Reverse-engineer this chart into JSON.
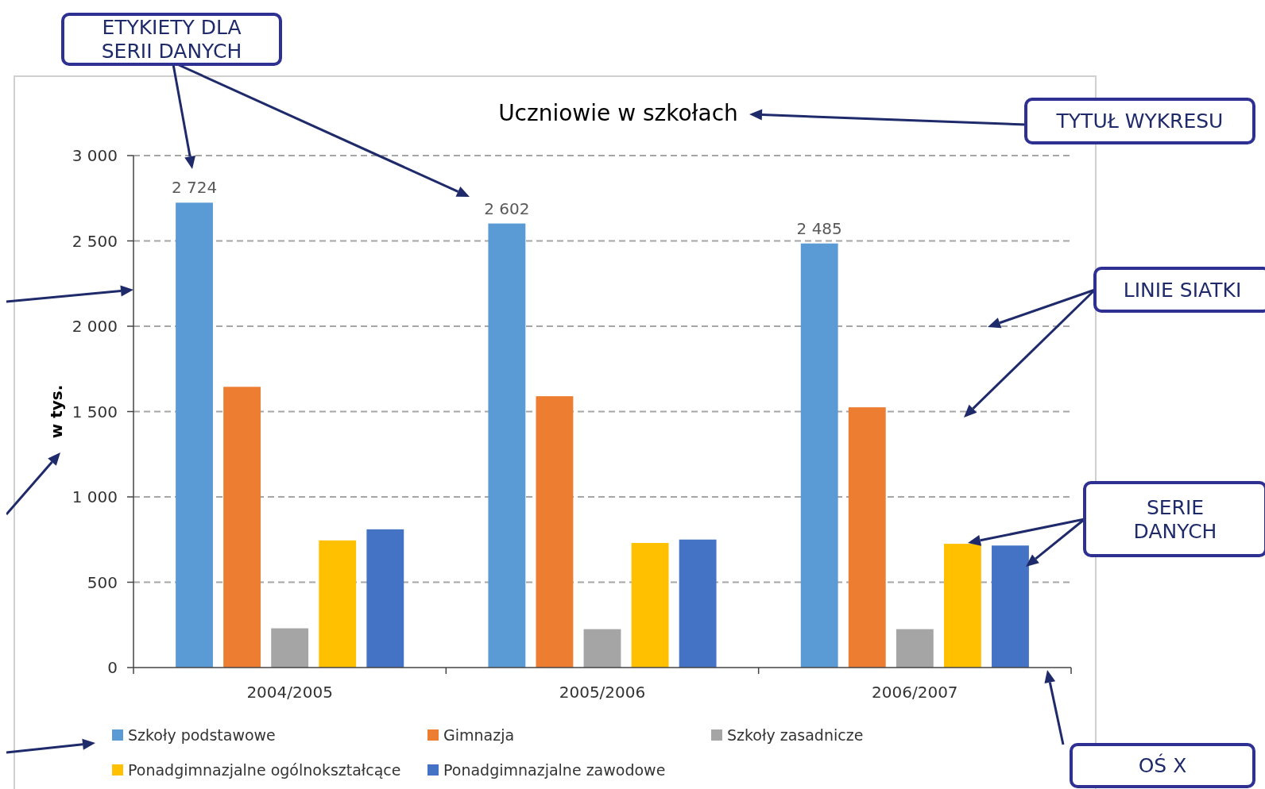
{
  "chart_data": {
    "type": "bar",
    "title": "Uczniowie w szkołach",
    "ylabel": "w tys.",
    "categories": [
      "2004/2005",
      "2005/2006",
      "2006/2007"
    ],
    "series": [
      {
        "name": "Szkoły podstawowe",
        "color": "#5b9bd5",
        "values": [
          2724,
          2602,
          2485
        ],
        "value_labels": [
          "2 724",
          "2 602",
          "2 485"
        ]
      },
      {
        "name": "Gimnazja",
        "color": "#ed7d31",
        "values": [
          1645,
          1590,
          1525
        ]
      },
      {
        "name": "Szkoły zasadnicze",
        "color": "#a5a5a5",
        "values": [
          230,
          225,
          225
        ]
      },
      {
        "name": "Ponadgimnazjalne ogólnokształcące",
        "color": "#ffc000",
        "values": [
          745,
          730,
          725
        ]
      },
      {
        "name": "Ponadgimnazjalne zawodowe",
        "color": "#4472c4",
        "values": [
          810,
          750,
          715
        ]
      }
    ],
    "ylim": [
      0,
      3000
    ],
    "yticks": [
      {
        "value": 0,
        "label": "0"
      },
      {
        "value": 500,
        "label": "500"
      },
      {
        "value": 1000,
        "label": "1 000"
      },
      {
        "value": 1500,
        "label": "1 500"
      },
      {
        "value": 2000,
        "label": "2 000"
      },
      {
        "value": 2500,
        "label": "2 500"
      },
      {
        "value": 3000,
        "label": "3 000"
      }
    ],
    "grid": "y",
    "legend": "bottom",
    "annotations": [
      "ETYKIETY DLA SERII DANYCH",
      "TYTUŁ WYKRESU",
      "LINIE SIATKI",
      "SERIE DANYCH",
      "OŚ X"
    ]
  }
}
